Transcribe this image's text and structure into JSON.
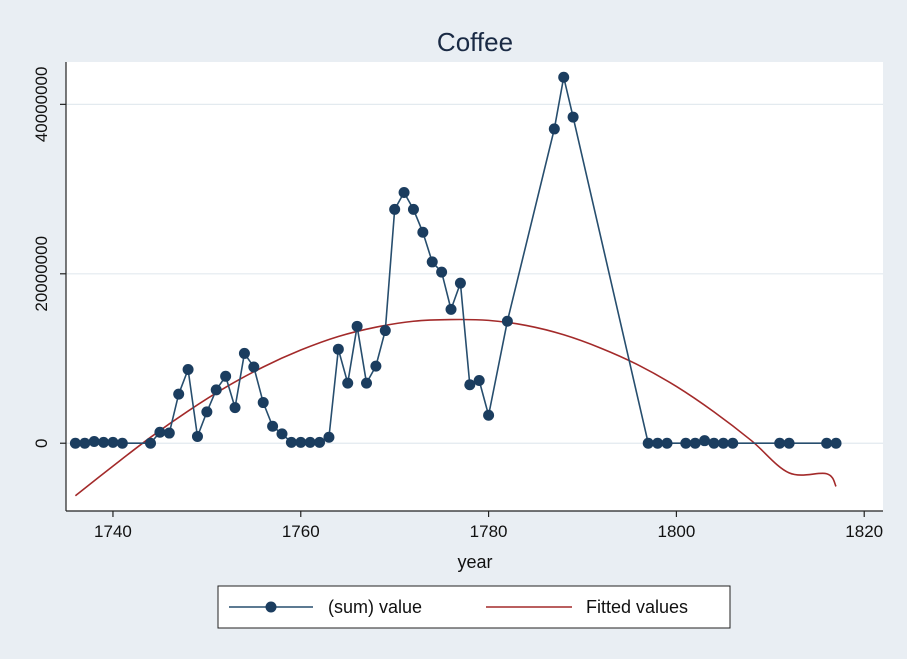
{
  "chart_data": {
    "type": "line",
    "title": "Coffee",
    "xlabel": "year",
    "ylabel": "",
    "xlim": [
      1735,
      1822
    ],
    "ylim": [
      -8000000,
      45000000
    ],
    "x_ticks": [
      1740,
      1760,
      1780,
      1800,
      1820
    ],
    "x_tick_labels": [
      "1740",
      "1760",
      "1780",
      "1800",
      "1820"
    ],
    "y_ticks": [
      0,
      20000000,
      40000000
    ],
    "y_tick_labels": [
      "0",
      "20000000",
      "40000000"
    ],
    "grid": true,
    "legend_position": "bottom",
    "colors": {
      "background": "#e9eef3",
      "plot_background": "#ffffff",
      "series_line": "#274e6e",
      "series_marker": "#1b3d5f",
      "fitted": "#a32a2a",
      "grid": "#e3eaef"
    },
    "series": [
      {
        "name": "(sum) value",
        "style": "line-with-markers",
        "x": [
          1736,
          1737,
          1738,
          1739,
          1740,
          1741,
          1744,
          1745,
          1746,
          1747,
          1748,
          1749,
          1750,
          1751,
          1752,
          1753,
          1754,
          1755,
          1756,
          1757,
          1758,
          1759,
          1760,
          1761,
          1762,
          1763,
          1764,
          1765,
          1766,
          1767,
          1768,
          1769,
          1770,
          1771,
          1772,
          1773,
          1774,
          1775,
          1776,
          1777,
          1778,
          1779,
          1780,
          1782,
          1787,
          1788,
          1789,
          1797,
          1798,
          1799,
          1801,
          1802,
          1803,
          1804,
          1805,
          1806,
          1811,
          1812,
          1816,
          1817
        ],
        "y": [
          0,
          0,
          200000,
          100000,
          100000,
          0,
          0,
          1300000,
          1200000,
          5800000,
          8700000,
          800000,
          3700000,
          6300000,
          7900000,
          4200000,
          10600000,
          9000000,
          4800000,
          2000000,
          1100000,
          100000,
          100000,
          100000,
          100000,
          700000,
          11100000,
          7100000,
          13800000,
          7100000,
          9100000,
          13300000,
          27600000,
          29600000,
          27600000,
          24900000,
          21400000,
          20200000,
          15800000,
          18900000,
          6900000,
          7400000,
          3300000,
          14400000,
          37100000,
          43200000,
          38500000,
          0,
          0,
          0,
          0,
          0,
          300000,
          0,
          0,
          0,
          0,
          0,
          0,
          0
        ]
      },
      {
        "name": "Fitted values",
        "style": "line",
        "x": [
          1736,
          1740,
          1744,
          1748,
          1752,
          1756,
          1760,
          1764,
          1768,
          1772,
          1776,
          1780,
          1784,
          1788,
          1792,
          1796,
          1800,
          1804,
          1808,
          1812,
          1816,
          1817
        ],
        "y": [
          -6200000,
          -2700000,
          700000,
          3800000,
          6600000,
          9000000,
          11000000,
          12600000,
          13700000,
          14400000,
          14600000,
          14500000,
          13900000,
          12800000,
          11200000,
          9200000,
          6700000,
          3700000,
          300000,
          -3500000,
          -3600000,
          -5100000
        ]
      }
    ]
  }
}
